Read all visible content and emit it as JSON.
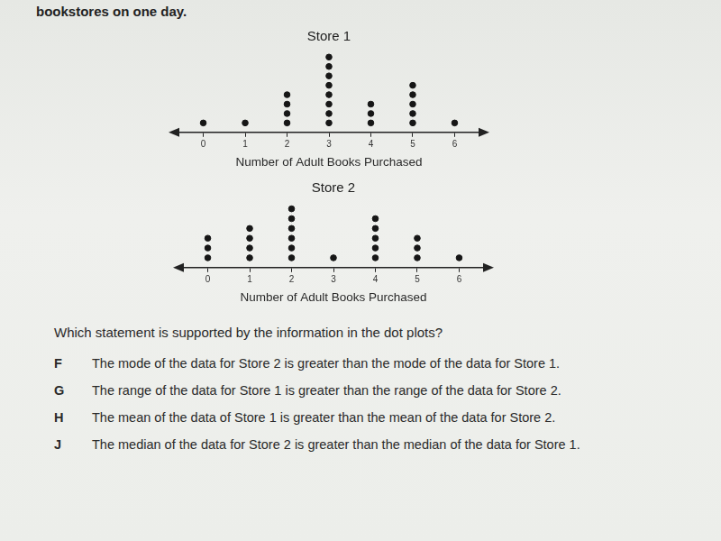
{
  "header": "bookstores on one day.",
  "chart_data": [
    {
      "type": "dot",
      "title": "Store 1",
      "x_label": "Number of Adult Books Purchased",
      "x": [
        0,
        1,
        2,
        3,
        4,
        5,
        6
      ],
      "values": [
        1,
        1,
        4,
        8,
        3,
        5,
        1
      ],
      "xlim": [
        -0.7,
        6.7
      ],
      "xticks": [
        0,
        1,
        2,
        3,
        4,
        5,
        6
      ],
      "tick_labels": "x",
      "color": "#161616",
      "marker": "circle"
    },
    {
      "type": "dot",
      "title": "Store 2",
      "x_label": "Number of Adult Books Purchased",
      "x": [
        0,
        1,
        2,
        3,
        4,
        5,
        6
      ],
      "values": [
        3,
        4,
        6,
        1,
        5,
        3,
        1
      ],
      "xlim": [
        -0.7,
        6.7
      ],
      "xticks": [
        0,
        1,
        2,
        3,
        4,
        5,
        6
      ],
      "tick_labels": "x",
      "color": "#161616",
      "marker": "circle"
    }
  ],
  "question": "Which statement is supported by the information in the dot plots?",
  "options": [
    {
      "letter": "F",
      "text": "The mode of the data for Store 2 is greater than the mode of the data for Store 1."
    },
    {
      "letter": "G",
      "text": "The range of the data for Store 1 is greater than the range of the data for Store 2."
    },
    {
      "letter": "H",
      "text": "The mean of the data of Store 1 is greater than the mean of the data for Store 2."
    },
    {
      "letter": "J",
      "text": "The median of the data for Store 2 is greater than the median of the data for Store 1."
    }
  ]
}
